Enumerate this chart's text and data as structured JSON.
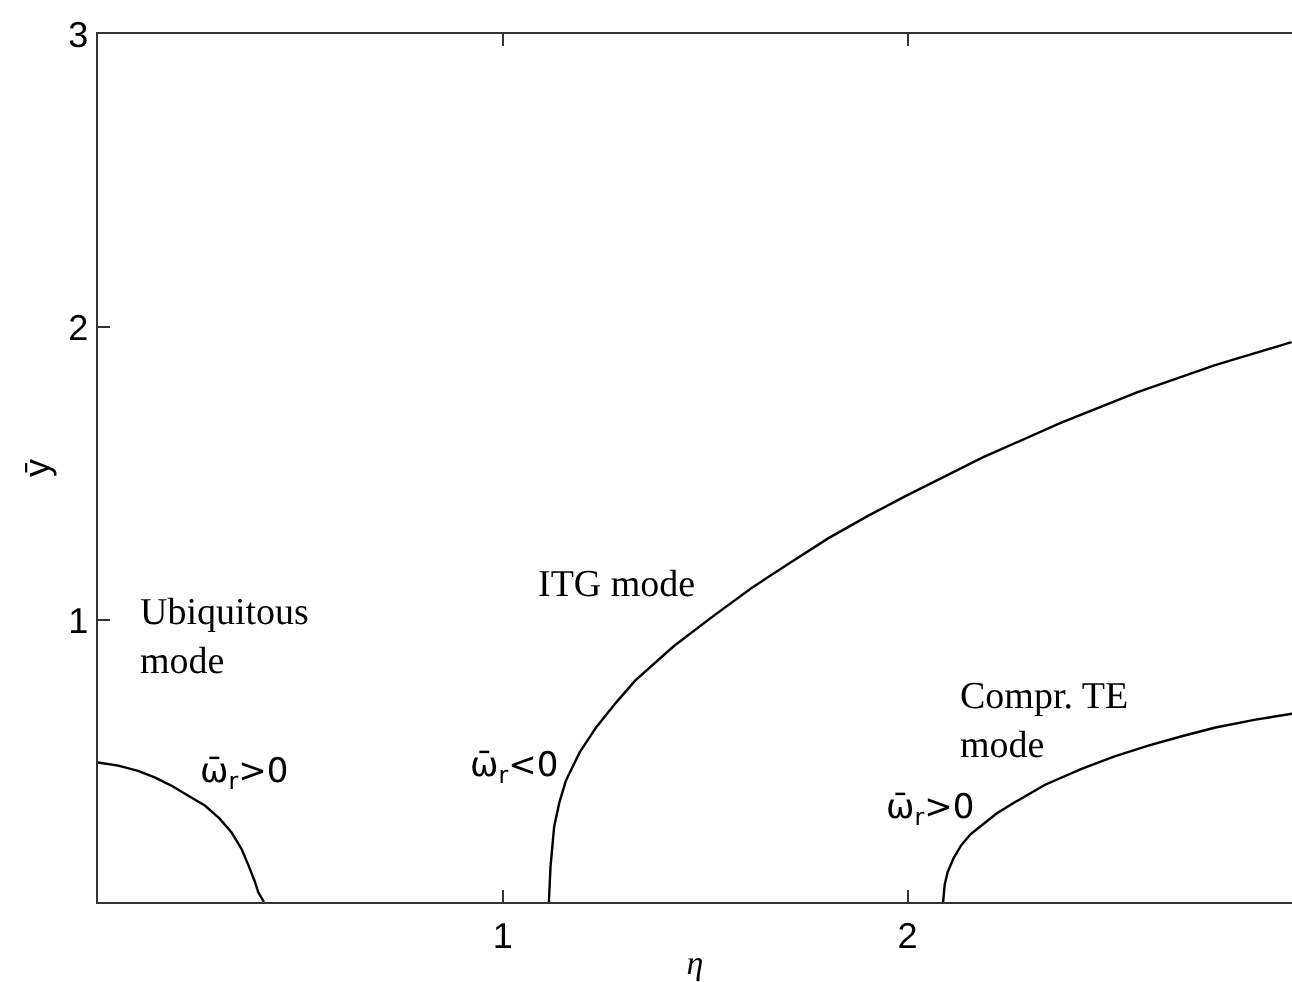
{
  "chart_data": {
    "type": "line",
    "xlabel": "η",
    "ylabel": "ȳ",
    "series": [
      {
        "color": "#000000",
        "x": [
          0,
          0.05,
          0.099,
          0.14,
          0.181,
          0.22,
          0.264,
          0.3,
          0.33,
          0.355,
          0.372,
          0.386,
          0.396,
          0.41
        ],
        "values": [
          0.516,
          0.505,
          0.487,
          0.465,
          0.437,
          0.405,
          0.369,
          0.325,
          0.277,
          0.22,
          0.164,
          0.115,
          0.073,
          0.04
        ]
      },
      {
        "color": "#000000",
        "x": [
          1.114,
          1.118,
          1.127,
          1.14,
          1.156,
          1.19,
          1.232,
          1.28,
          1.327,
          1.423,
          1.52,
          1.614,
          1.71,
          1.804,
          1.9,
          1.995,
          2.186,
          2.377,
          2.567,
          2.758,
          2.949
        ],
        "values": [
          0.04,
          0.16,
          0.297,
          0.38,
          0.454,
          0.55,
          0.638,
          0.72,
          0.795,
          0.913,
          1.015,
          1.11,
          1.197,
          1.28,
          1.355,
          1.424,
          1.556,
          1.673,
          1.778,
          1.87,
          1.949
        ]
      },
      {
        "color": "#000000",
        "x": [
          2.088,
          2.092,
          2.099,
          2.114,
          2.132,
          2.155,
          2.182,
          2.22,
          2.265,
          2.34,
          2.43,
          2.51,
          2.595,
          2.68,
          2.761,
          2.86,
          2.95
        ],
        "values": [
          0.04,
          0.1,
          0.141,
          0.19,
          0.232,
          0.27,
          0.3,
          0.342,
          0.38,
          0.44,
          0.494,
          0.536,
          0.573,
          0.606,
          0.635,
          0.662,
          0.682
        ]
      }
    ],
    "xlim": [
      0,
      2.95
    ],
    "ylim": [
      0.04,
      3
    ],
    "xticks": [
      1,
      2
    ],
    "yticks": [
      1,
      2,
      3
    ],
    "grid": false,
    "marker": "none",
    "line_style": "solid",
    "annotations": [
      "Ubiquitous\nmode",
      "ITG mode",
      "Compr. TE\nmode",
      "ω̄$_{r}$>0",
      "ω̄$_{r}$<0",
      "ω̄$_{r}$>0"
    ]
  }
}
